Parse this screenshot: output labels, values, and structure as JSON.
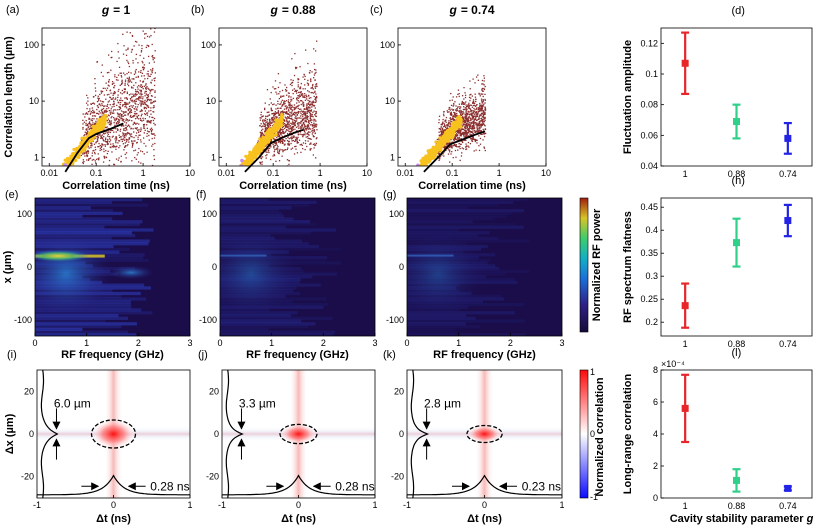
{
  "chart_data": [
    {
      "type": "scatter",
      "label": "(a)",
      "title": "g = 1",
      "title_var": "g",
      "title_value": "= 1",
      "xlabel": "Correlation time (ns)",
      "ylabel": "Correlation length (µm)",
      "xscale": "log",
      "yscale": "log",
      "xlim": [
        0.007,
        10
      ],
      "ylim": [
        0.7,
        200
      ],
      "xticks": [
        "0.01",
        "0.1",
        "1",
        "10"
      ],
      "yticks": [
        "1",
        "10",
        "100"
      ],
      "fit_line": {
        "x": [
          0.022,
          0.04,
          0.07,
          0.1,
          0.2,
          0.38
        ],
        "y": [
          0.55,
          1.2,
          2.2,
          2.6,
          3.2,
          4.0
        ]
      },
      "spread": 1.0
    },
    {
      "type": "scatter",
      "label": "(b)",
      "title": "g = 0.88",
      "title_var": "g",
      "title_value": "= 0.88",
      "xlabel": "Correlation time (ns)",
      "ylabel": "",
      "xscale": "log",
      "yscale": "log",
      "xlim": [
        0.007,
        10
      ],
      "ylim": [
        0.7,
        200
      ],
      "xticks": [
        "0.01",
        "0.1",
        "1",
        "10"
      ],
      "yticks": [
        "1",
        "10",
        "100"
      ],
      "fit_line": {
        "x": [
          0.025,
          0.05,
          0.09,
          0.15,
          0.3,
          0.45
        ],
        "y": [
          0.55,
          1.0,
          1.8,
          2.2,
          2.8,
          3.1
        ]
      },
      "spread": 0.7
    },
    {
      "type": "scatter",
      "label": "(c)",
      "title": "g = 0.74",
      "title_var": "g",
      "title_value": "= 0.74",
      "xlabel": "Correlation time (ns)",
      "ylabel": "",
      "xscale": "log",
      "yscale": "log",
      "xlim": [
        0.007,
        10
      ],
      "ylim": [
        0.7,
        200
      ],
      "xticks": [
        "0.01",
        "0.1",
        "1",
        "10"
      ],
      "yticks": [
        "1",
        "10",
        "100"
      ],
      "fit_line": {
        "x": [
          0.025,
          0.05,
          0.09,
          0.15,
          0.3,
          0.5
        ],
        "y": [
          0.55,
          1.0,
          1.7,
          2.0,
          2.5,
          2.9
        ]
      },
      "spread": 0.5
    },
    {
      "type": "errorbar",
      "label": "(d)",
      "ylabel": "Fluctuation amplitude",
      "categories": [
        "1",
        "0.88",
        "0.74"
      ],
      "ylim": [
        0.04,
        0.13
      ],
      "yticks": [
        "0.04",
        "0.06",
        "0.08",
        "0.1",
        "0.12"
      ],
      "tick_values": [
        0.04,
        0.06,
        0.08,
        0.1,
        0.12
      ],
      "values": [
        0.107,
        0.069,
        0.058
      ],
      "errors": [
        0.02,
        0.011,
        0.01
      ],
      "exponent": ""
    },
    {
      "type": "heatmap",
      "label": "(e)",
      "xlabel": "RF frequency (GHz)",
      "ylabel": "x (µm)",
      "xlim": [
        0,
        3
      ],
      "ylim": [
        -130,
        130
      ],
      "xticks": [
        "0",
        "1",
        "2",
        "3"
      ],
      "yticks": [
        "-100",
        "0",
        "100"
      ],
      "intensity": 1.0
    },
    {
      "type": "heatmap",
      "label": "(f)",
      "xlabel": "RF frequency (GHz)",
      "ylabel": "",
      "xlim": [
        0,
        3
      ],
      "ylim": [
        -130,
        130
      ],
      "xticks": [
        "0",
        "1",
        "2",
        "3"
      ],
      "yticks": [
        "-100",
        "0",
        "100"
      ],
      "intensity": 0.45
    },
    {
      "type": "heatmap",
      "label": "(g)",
      "xlabel": "RF frequency (GHz)",
      "ylabel": "",
      "xlim": [
        0,
        3
      ],
      "ylim": [
        -130,
        130
      ],
      "xticks": [
        "0",
        "1",
        "2",
        "3"
      ],
      "yticks": [
        "-100",
        "0",
        "100"
      ],
      "intensity": 0.35
    },
    {
      "type": "colorbar",
      "label": "Normalized RF power",
      "colormap": "parula"
    },
    {
      "type": "errorbar",
      "label": "(h)",
      "ylabel": "RF spectrum flatness",
      "categories": [
        "1",
        "0.88",
        "0.74"
      ],
      "ylim": [
        0.17,
        0.47
      ],
      "yticks": [
        "0.2",
        "0.25",
        "0.3",
        "0.35",
        "0.4",
        "0.45"
      ],
      "tick_values": [
        0.2,
        0.25,
        0.3,
        0.35,
        0.4,
        0.45
      ],
      "values": [
        0.236,
        0.373,
        0.421
      ],
      "errors": [
        0.048,
        0.052,
        0.034
      ],
      "exponent": ""
    },
    {
      "type": "heatmap",
      "label": "(i)",
      "xlabel": "Δt (ns)",
      "ylabel": "Δx (µm)",
      "xlim": [
        -1,
        1
      ],
      "ylim": [
        -30,
        30
      ],
      "xticks": [
        "-1",
        "0",
        "1"
      ],
      "yticks": [
        "-20",
        "0",
        "20"
      ],
      "annotations": [
        "6.0 µm",
        "0.28 ns"
      ],
      "peak_width": 1.0
    },
    {
      "type": "heatmap",
      "label": "(j)",
      "xlabel": "Δt (ns)",
      "ylabel": "",
      "xlim": [
        -1,
        1
      ],
      "ylim": [
        -30,
        30
      ],
      "xticks": [
        "-1",
        "0",
        "1"
      ],
      "yticks": [
        "-20",
        "0",
        "20"
      ],
      "annotations": [
        "3.3 µm",
        "0.28 ns"
      ],
      "peak_width": 0.6
    },
    {
      "type": "heatmap",
      "label": "(k)",
      "xlabel": "Δt (ns)",
      "ylabel": "",
      "xlim": [
        -1,
        1
      ],
      "ylim": [
        -30,
        30
      ],
      "xticks": [
        "-1",
        "0",
        "1"
      ],
      "yticks": [
        "-20",
        "0",
        "20"
      ],
      "annotations": [
        "2.8 µm",
        "0.23 ns"
      ],
      "peak_width": 0.5
    },
    {
      "type": "colorbar",
      "label": "Normalized correlation",
      "colormap": "bwr",
      "ticks": [
        "1",
        "0",
        "-1"
      ]
    },
    {
      "type": "errorbar",
      "label": "(l)",
      "ylabel": "Long-range correlation",
      "xlabel": "Cavity stability parameter",
      "xlabel_var": "g",
      "categories": [
        "1",
        "0.88",
        "0.74"
      ],
      "ylim": [
        0,
        8
      ],
      "yticks": [
        "0",
        "2",
        "4",
        "6",
        "8"
      ],
      "tick_values": [
        0,
        2,
        4,
        6,
        8
      ],
      "values": [
        5.6,
        1.1,
        0.6
      ],
      "errors": [
        2.1,
        0.7,
        0.12
      ],
      "exponent": "×10⁻⁴"
    }
  ],
  "colors": {
    "red": "#e8262a",
    "green": "#2fd08a",
    "blue": "#2323e6",
    "scatter": "#8b2e2e",
    "yellow": "#f7c21f",
    "violet": "#c58cf2"
  }
}
